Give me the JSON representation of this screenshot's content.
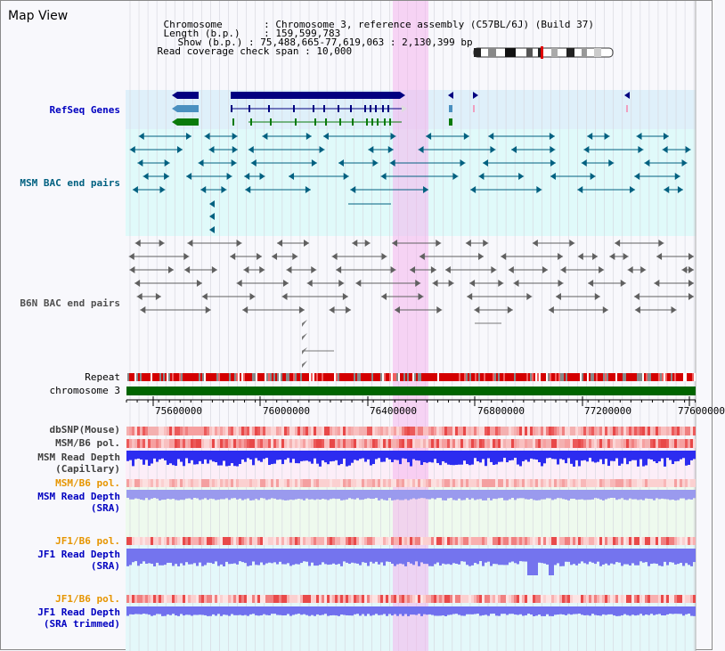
{
  "header": {
    "title": "Map View",
    "rows": [
      {
        "label": "Chromosome",
        "value": "Chromosome 3, reference assembly (C57BL/6J) (Build 37)"
      },
      {
        "label": "Length (b.p.)",
        "value": "159,599,783"
      },
      {
        "label": "Show (b.p.)",
        "value": "75,488,665-77,619,063 : 2,130,399 bp"
      },
      {
        "label": "Read coverage check span",
        "value": "10,000"
      }
    ]
  },
  "tracks": {
    "refseq": "RefSeq Genes",
    "msm_bac": "MSM BAC end pairs",
    "b6n_bac": "B6N BAC end pairs",
    "repeat": "Repeat",
    "chromosome": "chromosome 3",
    "dbsnp": "dbSNP(Mouse)",
    "msm_b6_pol": "MSM/B6 pol.",
    "msm_depth_cap_1": "MSM Read Depth",
    "msm_depth_cap_2": "(Capillary)",
    "msm_b6_pol2": "MSM/B6 pol.",
    "msm_depth_sra_1": "MSM Read Depth",
    "msm_depth_sra_2": "(SRA)",
    "jf1_b6_pol": "JF1/B6 pol.",
    "jf1_depth_sra_1": "JF1 Read Depth",
    "jf1_depth_sra_2": "(SRA)",
    "jf1_b6_pol2": "JF1/B6 pol.",
    "jf1_depth_trim_1": "JF1 Read Depth",
    "jf1_depth_trim_2": "(SRA trimmed)"
  },
  "axis": {
    "ticks": [
      "75600000",
      "76000000",
      "76400000",
      "76800000",
      "77200000",
      "77600000"
    ]
  },
  "colors": {
    "refseq_blue": "#000080",
    "msm_teal": "#006080",
    "b6n_gray": "#505050",
    "orange_label": "#e69500",
    "highlight": "#f4c8f0",
    "chromosome_green": "#006400"
  }
}
